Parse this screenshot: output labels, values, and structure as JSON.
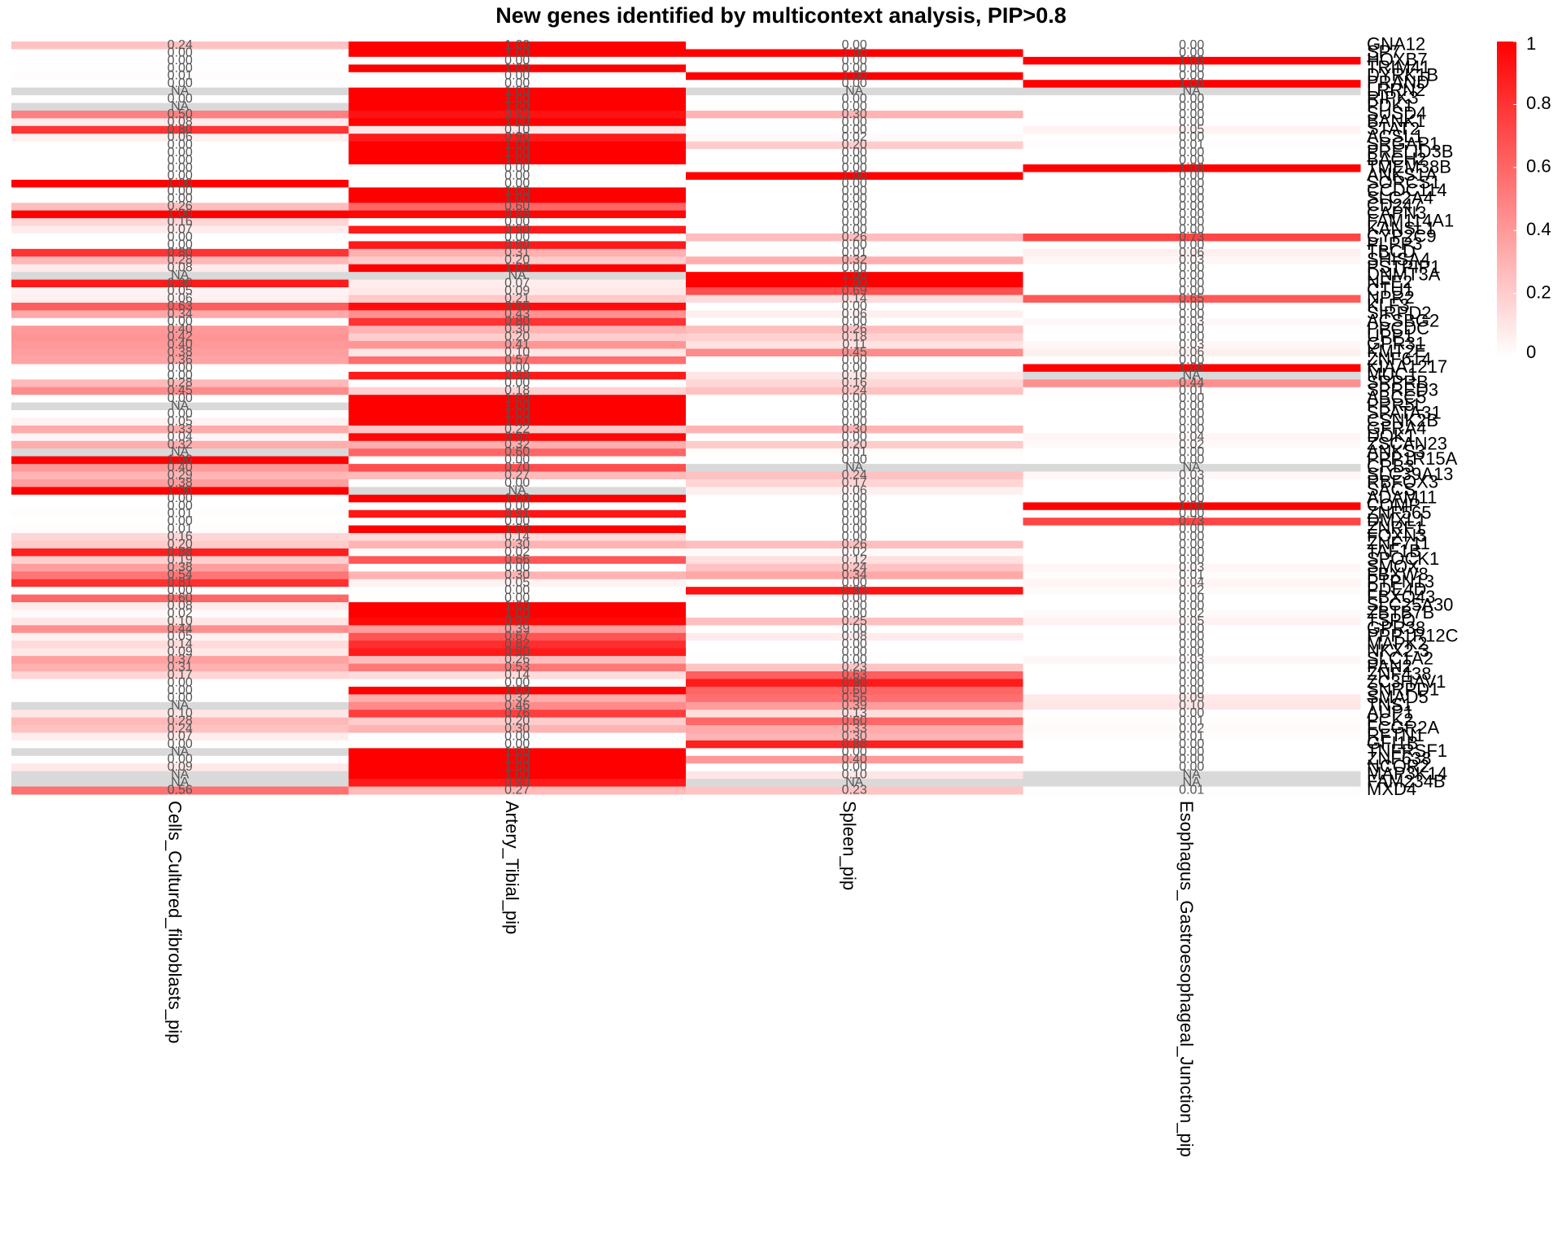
{
  "chart_data": {
    "type": "heatmap",
    "title": "New genes identified by multicontext analysis, PIP>0.8",
    "categories": [
      "GNA12",
      "SP7",
      "HOXB7",
      "TRIM41",
      "DYRK1B",
      "PRAND",
      "LRRN2",
      "RIPK3",
      "PDK1",
      "SUSD4",
      "BANK1",
      "STAT2",
      "ACSL1",
      "SRGAP1",
      "PRELID3B",
      "BACH2",
      "TMEM38B",
      "ANKS1A",
      "SORCS1",
      "CCDC114",
      "SLC2A4",
      "CD247",
      "CAPN3",
      "FAM114A1",
      "KANSL1",
      "CYP2C9",
      "PLPP3",
      "TBCD",
      "SHISA4",
      "PSTPIP1",
      "DNMT3A",
      "NFE2",
      "CTU1",
      "NPR2",
      "KLF3",
      "SIRPD2",
      "ACSBG2",
      "PPCDC",
      "UPP1",
      "GPR31",
      "KMT2E",
      "ZNF614",
      "KIAA1217",
      "MUC1",
      "SRPRB",
      "SPRED3",
      "ABCC5",
      "PRR5L",
      "SPATA31",
      "CSNK2B",
      "GFRA4",
      "DOK1",
      "ZSCAN23",
      "ANKS3",
      "PPP1R15A",
      "CRB3",
      "SLC39A13",
      "RBFOX3",
      "SACS",
      "ADAM11",
      "COMP",
      "ZNF565",
      "DMXL1",
      "ZNRF1",
      "FOXN3",
      "ZNF711",
      "TAF1B",
      "SPOCK1",
      "SMOX",
      "FBXW8",
      "PTPN13",
      "PDE4D",
      "FBXO43",
      "SLC25A30",
      "ZBTB7B",
      "TSPO",
      "GPR38",
      "PPP1R12C",
      "MAPK2",
      "NKX2-3",
      "SLC1A2",
      "PAN2",
      "ZNF438",
      "ZC3HAV1",
      "SNRPD1",
      "SMAD5",
      "TNS1",
      "AUP1",
      "PCK2",
      "FCGR2A",
      "RFTN1",
      "GFI1B",
      "TNFRSF1",
      "ZNF638",
      "NCOR2",
      "MAP3K14",
      "FAM234B",
      "MXD4"
    ],
    "series": [
      {
        "name": "Cells_Cultured_fibroblasts_pip",
        "values": [
          0.24,
          0,
          0,
          0,
          0.01,
          0,
          null,
          0,
          null,
          0.5,
          0.08,
          0.8,
          0.06,
          0,
          0,
          0,
          0,
          0,
          1,
          0,
          0,
          0.26,
          1,
          0.16,
          0.07,
          0,
          0,
          0.8,
          0.28,
          0.08,
          null,
          0.9,
          0.05,
          0.06,
          0.63,
          0.34,
          0,
          0.4,
          0.42,
          0.4,
          0.38,
          0.36,
          0,
          0,
          0.28,
          0.45,
          0,
          null,
          0,
          0.05,
          0.33,
          0.04,
          0.32,
          null,
          1,
          0.4,
          0.29,
          0.38,
          1,
          0,
          0,
          0.01,
          0,
          0.01,
          0.16,
          0.2,
          0.88,
          0.19,
          0.38,
          0.54,
          0.81,
          0,
          0.6,
          0.08,
          0.02,
          0.1,
          0.44,
          0.05,
          0.14,
          0.09,
          0.37,
          0.31,
          0.17,
          0,
          0,
          0,
          null,
          0.1,
          0.28,
          0.24,
          0.07,
          0,
          null,
          0,
          0.09,
          null,
          null,
          0.56
        ],
        "value_labels": [
          "0.24",
          "0.00",
          "0.00",
          "0.00",
          "0.01",
          "0.00",
          "NA",
          "0.00",
          "NA",
          "0.50",
          "0.08",
          "0.80",
          "0.06",
          "0.00",
          "0.00",
          "0.00",
          "0.00",
          "0.00",
          "1.00",
          "0.00",
          "0.00",
          "0.26",
          "1.00",
          "0.16",
          "0.07",
          "0.00",
          "0.00",
          "0.80",
          "0.28",
          "0.08",
          "NA",
          "0.90",
          "0.05",
          "0.06",
          "0.63",
          "0.34",
          "0.00",
          "0.40",
          "0.42",
          "0.40",
          "0.38",
          "0.36",
          "0.00",
          "0.00",
          "0.28",
          "0.45",
          "0.00",
          "NA",
          "0.00",
          "0.05",
          "0.33",
          "0.04",
          "0.32",
          "NA",
          "1.00",
          "0.40",
          "0.29",
          "0.38",
          "1.00",
          "0.00",
          "0.00",
          "0.01",
          "0.00",
          "0.01",
          "0.16",
          "0.20",
          "0.88",
          "0.19",
          "0.38",
          "0.54",
          "0.81",
          "0.00",
          "0.60",
          "0.08",
          "0.02",
          "0.10",
          "0.44",
          "0.05",
          "0.14",
          "0.09",
          "0.37",
          "0.31",
          "0.17",
          "0.00",
          "0.00",
          "0.00",
          "NA",
          "0.10",
          "0.28",
          "0.24",
          "0.07",
          "0.00",
          "NA",
          "0.00",
          "0.09",
          "NA",
          "NA",
          "0.56"
        ]
      },
      {
        "name": "Artery_Tibial_pip",
        "values": [
          1,
          1,
          0,
          1,
          0,
          0,
          1,
          1,
          1,
          0.93,
          1,
          0.1,
          0.9,
          1,
          1,
          1,
          0,
          0,
          0,
          1,
          1,
          0.6,
          0.98,
          0,
          0.9,
          0,
          0.9,
          0.31,
          0.2,
          1,
          null,
          0.07,
          0.09,
          0.21,
          0.95,
          0.43,
          0.8,
          0.3,
          0.2,
          0.41,
          0.1,
          0.57,
          0,
          0.9,
          0,
          0.18,
          1,
          1,
          1,
          1,
          0.22,
          0.97,
          0.32,
          0.6,
          0,
          0.7,
          0.27,
          0,
          null,
          1,
          0,
          0.91,
          0,
          1,
          0.14,
          0.3,
          0.02,
          0.66,
          0,
          0.3,
          0.05,
          0,
          0,
          1,
          1,
          0.97,
          0.39,
          0.67,
          0.82,
          0.9,
          0.26,
          0.53,
          0.14,
          0,
          1,
          0.32,
          0.46,
          0.76,
          0.2,
          0.3,
          0,
          0,
          1,
          1,
          1,
          1,
          0.9,
          0.27
        ],
        "value_labels": [
          "1.00",
          "1.00",
          "0.00",
          "1.00",
          "0.00",
          "0.00",
          "1.00",
          "1.00",
          "1.00",
          "0.93",
          "1.00",
          "0.10",
          "0.90",
          "1.00",
          "1.00",
          "1.00",
          "0.00",
          "0.00",
          "0.00",
          "1.00",
          "1.00",
          "0.60",
          "0.98",
          "0.00",
          "0.90",
          "0.00",
          "0.90",
          "0.31",
          "0.20",
          "1.00",
          "NA",
          "0.07",
          "0.09",
          "0.21",
          "0.95",
          "0.43",
          "0.80",
          "0.30",
          "0.20",
          "0.41",
          "0.10",
          "0.57",
          "0.00",
          "0.90",
          "0.00",
          "0.18",
          "1.00",
          "1.00",
          "1.00",
          "1.00",
          "0.22",
          "0.97",
          "0.32",
          "0.60",
          "0.00",
          "0.70",
          "0.27",
          "0.00",
          "NA",
          "1.00",
          "0.00",
          "0.91",
          "0.00",
          "1.00",
          "0.14",
          "0.30",
          "0.02",
          "0.66",
          "0.00",
          "0.30",
          "0.05",
          "0.00",
          "0.00",
          "1.00",
          "1.00",
          "0.97",
          "0.39",
          "0.67",
          "0.82",
          "0.90",
          "0.26",
          "0.53",
          "0.14",
          "0.00",
          "1.00",
          "0.32",
          "0.46",
          "0.76",
          "0.20",
          "0.30",
          "0.00",
          "0.00",
          "1.00",
          "1.00",
          "1.00",
          "1.00",
          "0.90",
          "0.27"
        ]
      },
      {
        "name": "Spleen_pip",
        "values": [
          0,
          1,
          0,
          0,
          1,
          0,
          null,
          0,
          0,
          0.3,
          0,
          0,
          0.02,
          0.2,
          0,
          0,
          0,
          1,
          0,
          0,
          0,
          0,
          0,
          0,
          0,
          0.26,
          0,
          0.01,
          0.32,
          0,
          1,
          1,
          0.69,
          0.14,
          0,
          0.06,
          0,
          0.26,
          0.18,
          0.11,
          0.45,
          0,
          0,
          0.1,
          0.16,
          0.24,
          0,
          0,
          0,
          0,
          0.3,
          0,
          0.2,
          0.01,
          0,
          null,
          0.24,
          0.17,
          0.06,
          0,
          0,
          0,
          0,
          0,
          0,
          0.26,
          0.02,
          0.12,
          0.24,
          0.34,
          0,
          0.93,
          0,
          0,
          0,
          0.25,
          0,
          0.08,
          0,
          0,
          0,
          0.23,
          0.63,
          0.9,
          0.6,
          0.56,
          0.39,
          0.13,
          0.6,
          0.33,
          0.3,
          0.88,
          0,
          0.4,
          0,
          0.1,
          null,
          0.23
        ],
        "value_labels": [
          "0.00",
          "1.00",
          "0.00",
          "0.00",
          "1.00",
          "0.00",
          "NA",
          "0.00",
          "0.00",
          "0.30",
          "0.00",
          "0.00",
          "0.02",
          "0.20",
          "0.00",
          "0.00",
          "0.00",
          "1.00",
          "0.00",
          "0.00",
          "0.00",
          "0.00",
          "0.00",
          "0.00",
          "0.00",
          "0.26",
          "0.00",
          "0.01",
          "0.32",
          "0.00",
          "1.00",
          "1.00",
          "0.69",
          "0.14",
          "0.00",
          "0.06",
          "0.00",
          "0.26",
          "0.18",
          "0.11",
          "0.45",
          "0.00",
          "0.00",
          "0.10",
          "0.16",
          "0.24",
          "0.00",
          "0.00",
          "0.00",
          "0.00",
          "0.30",
          "0.00",
          "0.20",
          "0.01",
          "0.00",
          "NA",
          "0.24",
          "0.17",
          "0.06",
          "0.00",
          "0.00",
          "0.00",
          "0.00",
          "0.00",
          "0.00",
          "0.26",
          "0.02",
          "0.12",
          "0.24",
          "0.34",
          "0.00",
          "0.93",
          "0.00",
          "0.00",
          "0.00",
          "0.25",
          "0.00",
          "0.08",
          "0.00",
          "0.00",
          "0.00",
          "0.23",
          "0.63",
          "0.90",
          "0.60",
          "0.56",
          "0.39",
          "0.13",
          "0.60",
          "0.33",
          "0.30",
          "0.88",
          "0.00",
          "0.40",
          "0.00",
          "0.10",
          "NA",
          "0.23"
        ]
      },
      {
        "name": "Esophagus_Gastroesophageal_Junction_pip",
        "values": [
          0,
          0,
          1,
          0,
          0,
          1,
          null,
          0,
          0,
          0,
          0,
          0.05,
          0,
          0.01,
          0,
          0,
          1,
          0,
          0,
          0,
          0,
          0,
          0,
          0,
          0,
          0.73,
          0,
          0.06,
          0.03,
          0,
          0,
          0,
          0,
          0.65,
          0,
          0,
          0.03,
          0,
          0,
          0.03,
          0.06,
          0,
          1,
          null,
          0.44,
          0.01,
          0,
          0,
          0,
          0,
          0,
          0.04,
          0.02,
          0,
          0,
          null,
          0.03,
          0,
          0,
          0,
          1,
          0,
          0.73,
          0,
          0,
          0,
          0,
          0,
          0.03,
          0.01,
          0.04,
          0.02,
          0,
          0,
          0.02,
          0.05,
          0,
          0,
          0,
          0,
          0.03,
          0,
          0,
          0,
          0,
          0.09,
          0.1,
          0,
          0.01,
          0.02,
          0.01,
          0,
          0,
          0,
          0,
          null,
          null,
          0.01
        ],
        "value_labels": [
          "0.00",
          "0.00",
          "1.00",
          "0.00",
          "0.00",
          "1.00",
          "NA",
          "0.00",
          "0.00",
          "0.00",
          "0.00",
          "0.05",
          "0.00",
          "0.01",
          "0.00",
          "0.00",
          "1.00",
          "0.00",
          "0.00",
          "0.00",
          "0.00",
          "0.00",
          "0.00",
          "0.00",
          "0.00",
          "0.73",
          "0.00",
          "0.06",
          "0.03",
          "0.00",
          "0.00",
          "0.00",
          "0.00",
          "0.65",
          "0.00",
          "0.00",
          "0.03",
          "0.00",
          "0.00",
          "0.03",
          "0.06",
          "0.00",
          "1.00",
          "NA",
          "0.44",
          "0.01",
          "0.00",
          "0.00",
          "0.00",
          "0.00",
          "0.00",
          "0.04",
          "0.02",
          "0.00",
          "0.00",
          "NA",
          "0.03",
          "0.00",
          "0.00",
          "0.00",
          "1.00",
          "0.00",
          "0.73",
          "0.00",
          "0.00",
          "0.00",
          "0.00",
          "0.00",
          "0.03",
          "0.01",
          "0.04",
          "0.02",
          "0.00",
          "0.00",
          "0.02",
          "0.05",
          "0.00",
          "0.00",
          "0.00",
          "0.00",
          "0.03",
          "0.00",
          "0.00",
          "0.00",
          "0.00",
          "0.09",
          "0.10",
          "0.00",
          "0.01",
          "0.02",
          "0.01",
          "0.00",
          "0.00",
          "0.00",
          "0.00",
          "NA",
          "NA",
          "0.01"
        ]
      }
    ],
    "zlim": [
      0,
      1
    ],
    "zticks": [
      0,
      0.2,
      0.4,
      0.6,
      0.8,
      1
    ],
    "low_color": "#ffffff",
    "high_color": "#ff0000",
    "na_color": "#d9d9d9"
  }
}
